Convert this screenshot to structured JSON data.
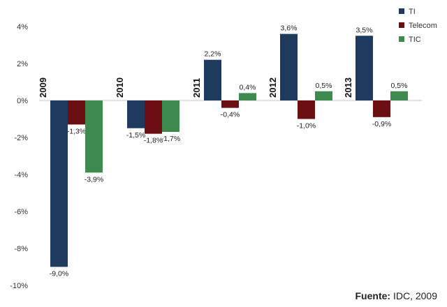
{
  "chart_data": {
    "type": "bar",
    "title": "",
    "xlabel": "",
    "ylabel": "",
    "categories": [
      "2009",
      "2010",
      "2011",
      "2012",
      "2013"
    ],
    "series": [
      {
        "name": "TI",
        "color": "#1f3a5f",
        "values": [
          -9.0,
          -1.5,
          2.2,
          3.6,
          3.5
        ],
        "labels": [
          "-9,0%",
          "-1,5%",
          "2,2%",
          "3,6%",
          "3,5%"
        ]
      },
      {
        "name": "Telecom",
        "color": "#6b0f12",
        "values": [
          -1.3,
          -1.8,
          -0.4,
          -1.0,
          -0.9
        ],
        "labels": [
          "-1,3%",
          "-1,8%",
          "-0,4%",
          "-1,0%",
          "-0,9%"
        ]
      },
      {
        "name": "TIC",
        "color": "#3e8a4f",
        "values": [
          -3.9,
          -1.7,
          0.4,
          0.5,
          0.5
        ],
        "labels": [
          "-3,9%",
          "-1,7%",
          "0,4%",
          "0,5%",
          "0,5%"
        ]
      }
    ],
    "ylim": [
      -10,
      4
    ],
    "yticks": [
      4,
      2,
      0,
      -2,
      -4,
      -6,
      -8,
      -10
    ],
    "ytick_labels": [
      "4%",
      "2%",
      "0%",
      "-2%",
      "-4%",
      "-6%",
      "-8%",
      "-10%"
    ],
    "legend_position": "top-right",
    "grid": false
  },
  "source": {
    "label": "Fuente:",
    "text": " IDC, 2009"
  }
}
